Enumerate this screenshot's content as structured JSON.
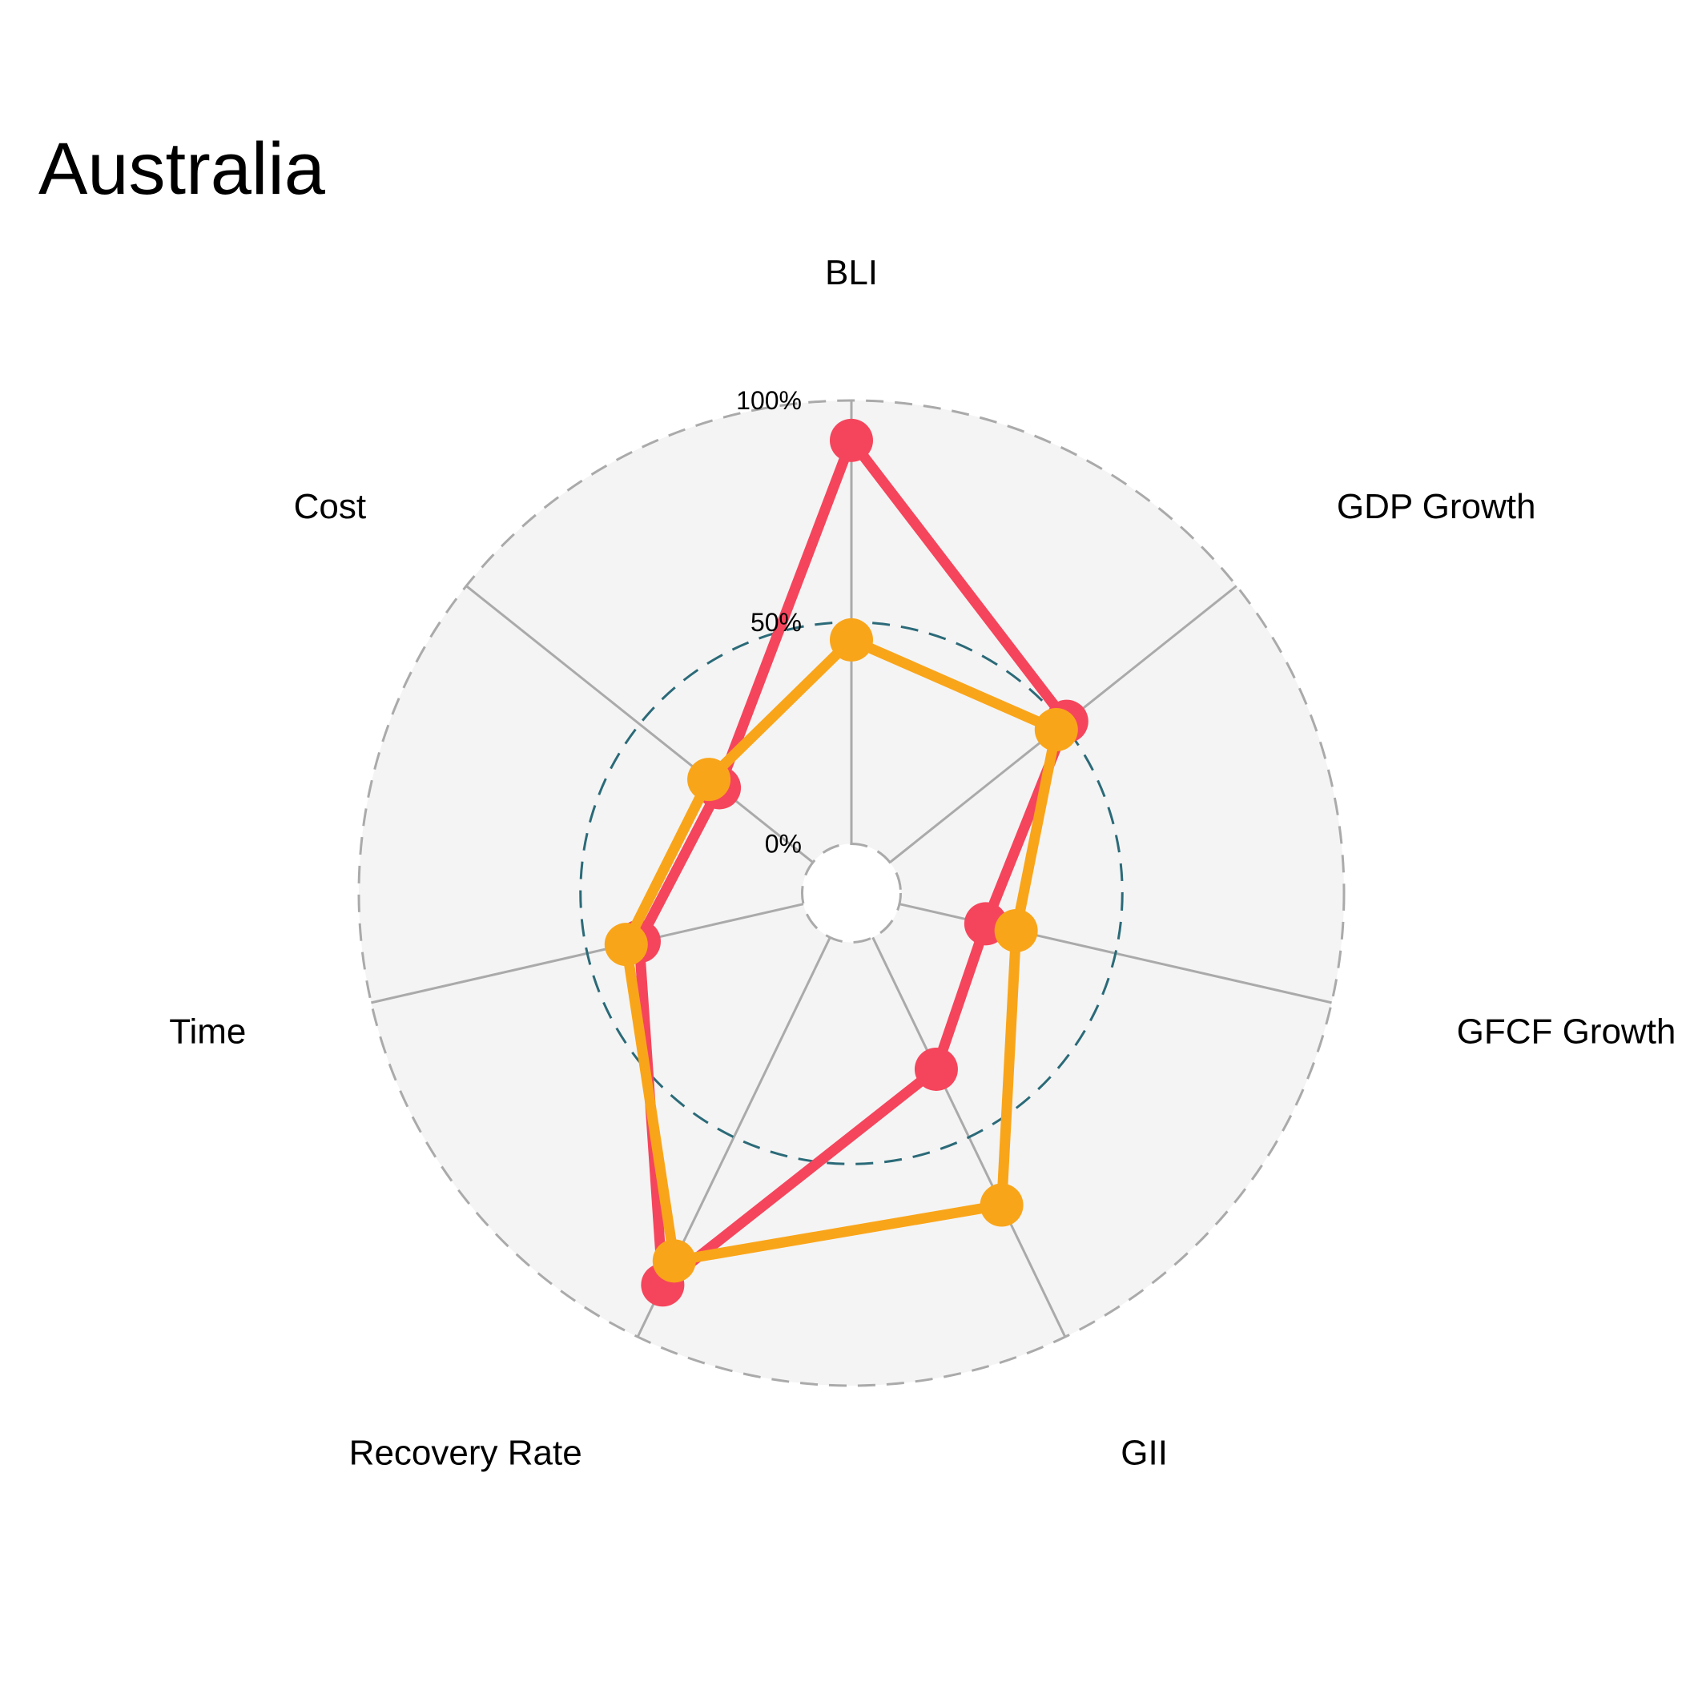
{
  "chart_data": {
    "type": "radar",
    "title": "Australia",
    "axes": [
      "BLI",
      "GDP Growth",
      "GFCF Growth",
      "GII",
      "Recovery Rate",
      "Time",
      "Cost"
    ],
    "tick_labels": [
      "0%",
      "50%",
      "100%"
    ],
    "range": [
      0,
      1
    ],
    "center_hole_fraction": 0.1,
    "series": [
      {
        "values": [
          0.91,
          0.51,
          0.2,
          0.33,
          0.87,
          0.38,
          0.27
        ],
        "color": "#f5455c"
      },
      {
        "values": [
          0.46,
          0.48,
          0.27,
          0.67,
          0.81,
          0.41,
          0.3
        ],
        "color": "#f9a51a"
      }
    ],
    "colors": {
      "panel_fill": "#f4f4f4",
      "outer_ring": "#aaaaaa",
      "mid_ring": "#2b6a78",
      "spoke": "#aaaaaa"
    }
  }
}
